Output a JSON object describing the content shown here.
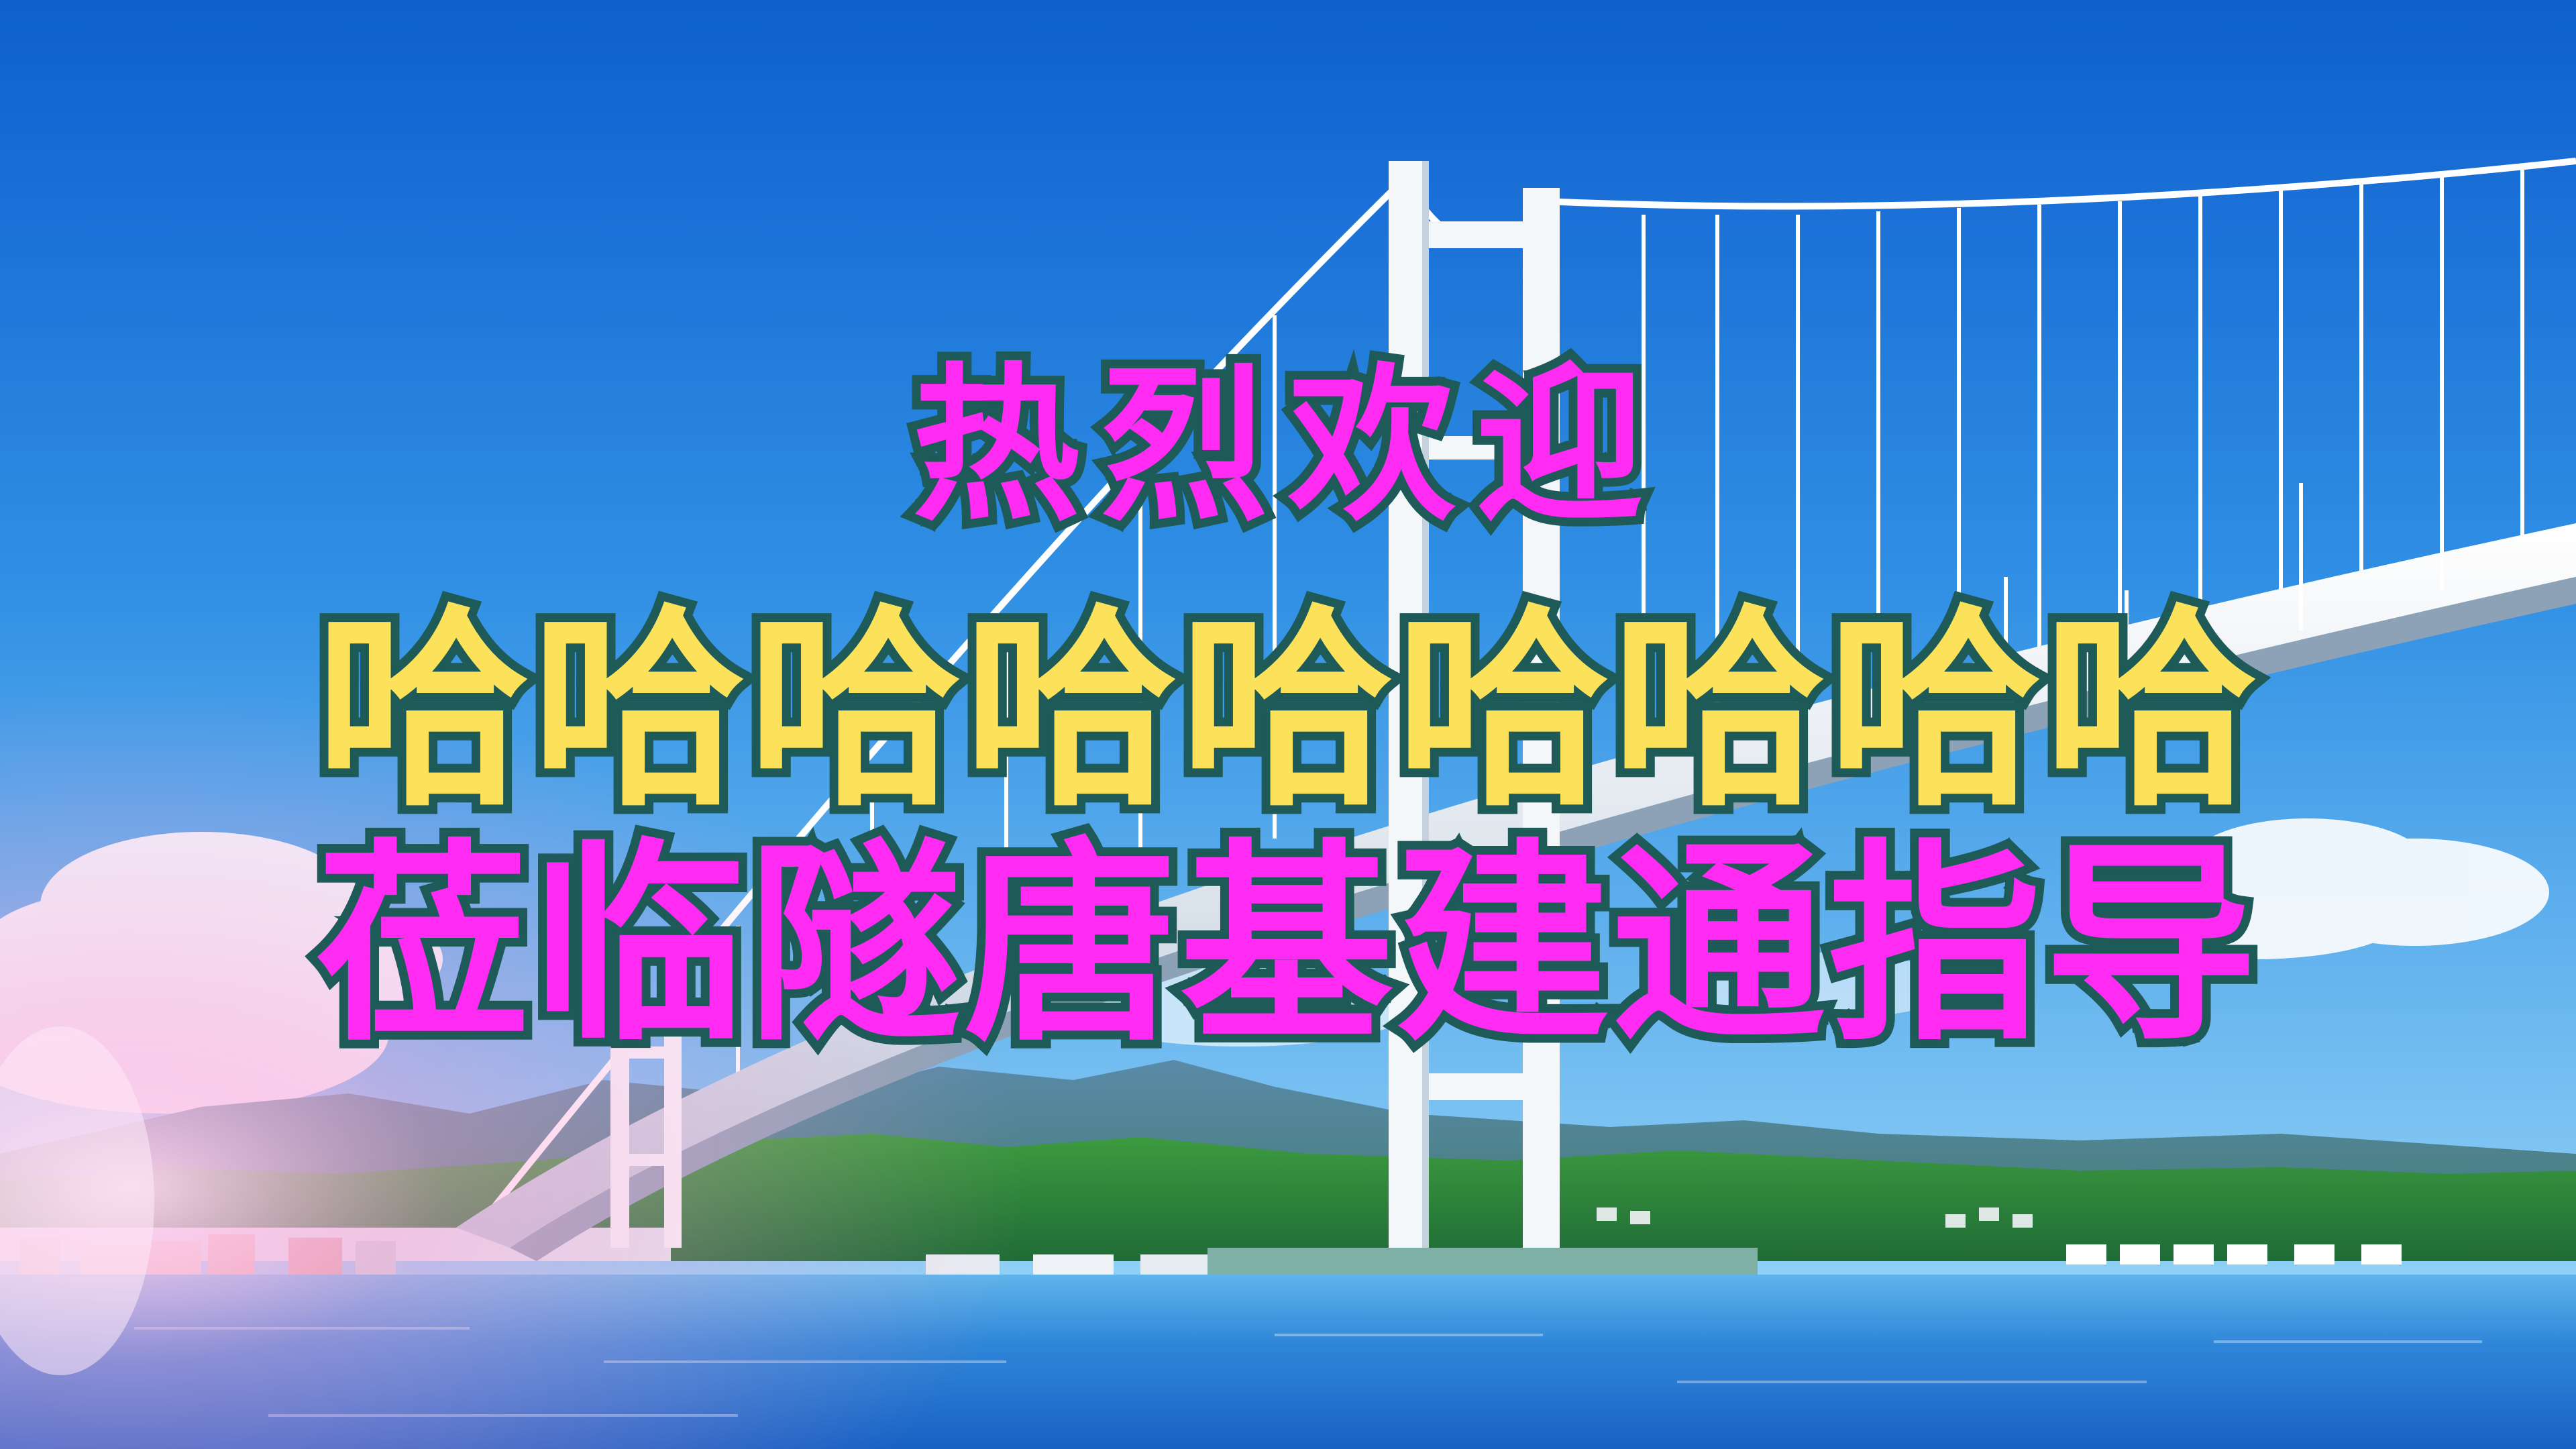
{
  "headline": {
    "line1": "热烈欢迎",
    "line2": "哈哈哈哈哈哈哈哈哈",
    "line3": "莅临隧唐基建通指导"
  },
  "colors": {
    "sky_top": "#1a6fd6",
    "sky_bottom": "#6fc0f2",
    "sea": "#2e86d6",
    "hills": "#2f8a3c",
    "bridge": "#f2f6fa",
    "headline_magenta": "#ff2bf2",
    "headline_yellow": "#fce25a",
    "headline_outline": "#1e5a57"
  }
}
